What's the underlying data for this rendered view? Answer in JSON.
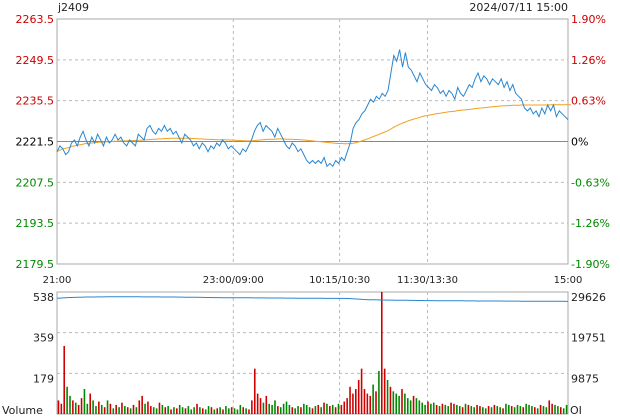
{
  "header": {
    "symbol": "j2409",
    "datetime": "2024/07/11 15:00"
  },
  "colors": {
    "up": "#cc0000",
    "down": "#008800",
    "flat": "#000000",
    "price_line": "#2a86d0",
    "avg_line": "#f0a020",
    "oi_line": "#2a86d0",
    "vol_up": "#cc0000",
    "vol_down": "#008800",
    "grid": "#bbbbbb",
    "axis": "#aaaaaa"
  },
  "chart_data": [
    {
      "type": "line",
      "name": "price",
      "y_ticks": [
        {
          "label": "2263.5",
          "value": 2263.5,
          "pct": "1.90%",
          "color": "up"
        },
        {
          "label": "2249.5",
          "value": 2249.5,
          "pct": "1.26%",
          "color": "up"
        },
        {
          "label": "2235.5",
          "value": 2235.5,
          "pct": "0.63%",
          "color": "up"
        },
        {
          "label": "2221.5",
          "value": 2221.5,
          "pct": "0%",
          "color": "flat"
        },
        {
          "label": "2207.5",
          "value": 2207.5,
          "pct": "-0.63%",
          "color": "down"
        },
        {
          "label": "2193.5",
          "value": 2193.5,
          "pct": "-1.26%",
          "color": "down"
        },
        {
          "label": "2179.5",
          "value": 2179.5,
          "pct": "-1.90%",
          "color": "down"
        }
      ],
      "ylim": [
        2179.5,
        2263.5
      ],
      "prev_close": 2221.5,
      "x_ticks": [
        {
          "label": "21:00",
          "pos": 0
        },
        {
          "label": "23:00/09:00",
          "pos": 0.345
        },
        {
          "label": "10:15/10:30",
          "pos": 0.553
        },
        {
          "label": "11:30/13:30",
          "pos": 0.725
        },
        {
          "label": "15:00",
          "pos": 1
        }
      ],
      "price": [
        2218,
        2220,
        2219,
        2217,
        2218,
        2221,
        2222,
        2220,
        2223,
        2225,
        2222,
        2220,
        2223,
        2221,
        2224,
        2222,
        2220,
        2223,
        2221,
        2222,
        2224,
        2222,
        2223,
        2221,
        2220,
        2222,
        2221,
        2220,
        2224,
        2223,
        2222,
        2226,
        2227,
        2225,
        2224,
        2226,
        2225,
        2227,
        2225,
        2226,
        2224,
        2225,
        2223,
        2221,
        2224,
        2223,
        2222,
        2220,
        2221,
        2219,
        2221,
        2220,
        2218,
        2220,
        2219,
        2221,
        2220,
        2222,
        2221,
        2219,
        2220,
        2219,
        2218,
        2217,
        2219,
        2218,
        2220,
        2222,
        2225,
        2227,
        2228,
        2225,
        2227,
        2226,
        2225,
        2223,
        2226,
        2224,
        2222,
        2220,
        2219,
        2221,
        2220,
        2218,
        2219,
        2217,
        2215,
        2214,
        2215,
        2214,
        2215,
        2214,
        2216,
        2213,
        2214,
        2213,
        2215,
        2214,
        2216,
        2215,
        2218,
        2221,
        2226,
        2228,
        2229,
        2231,
        2232,
        2234,
        2236,
        2235,
        2237,
        2236,
        2238,
        2237,
        2239,
        2245,
        2251,
        2249,
        2253,
        2247,
        2252,
        2247,
        2246,
        2244,
        2242,
        2245,
        2243,
        2241,
        2240,
        2239,
        2241,
        2240,
        2238,
        2239,
        2237,
        2239,
        2238,
        2236,
        2240,
        2238,
        2237,
        2239,
        2241,
        2240,
        2243,
        2245,
        2242,
        2244,
        2243,
        2241,
        2243,
        2242,
        2241,
        2243,
        2240,
        2242,
        2239,
        2241,
        2238,
        2237,
        2236,
        2233,
        2232,
        2233,
        2231,
        2232,
        2230,
        2233,
        2231,
        2234,
        2232,
        2234,
        2230,
        2232,
        2231,
        2230,
        2229
      ],
      "avg": [
        2218,
        2218.6,
        2219,
        2219.2,
        2219.4,
        2219.8,
        2220,
        2220.2,
        2220.4,
        2220.6,
        2220.8,
        2220.9,
        2221,
        2221.1,
        2221.2,
        2221.3,
        2221.3,
        2221.4,
        2221.4,
        2221.5,
        2221.6,
        2221.6,
        2221.7,
        2221.7,
        2221.7,
        2221.8,
        2221.8,
        2221.8,
        2221.9,
        2221.9,
        2222,
        2222.1,
        2222.2,
        2222.3,
        2222.3,
        2222.4,
        2222.4,
        2222.5,
        2222.5,
        2222.6,
        2222.6,
        2222.6,
        2222.6,
        2222.6,
        2222.6,
        2222.6,
        2222.6,
        2222.5,
        2222.5,
        2222.4,
        2222.4,
        2222.3,
        2222.3,
        2222.2,
        2222.2,
        2222.1,
        2222.1,
        2222.1,
        2222.1,
        2222,
        2222,
        2221.9,
        2221.9,
        2221.8,
        2221.8,
        2221.7,
        2221.7,
        2221.7,
        2221.8,
        2221.9,
        2222,
        2222.1,
        2222.2,
        2222.3,
        2222.3,
        2222.3,
        2222.4,
        2222.4,
        2222.4,
        2222.3,
        2222.3,
        2222.3,
        2222.2,
        2222.2,
        2222.1,
        2222,
        2221.9,
        2221.8,
        2221.7,
        2221.6,
        2221.5,
        2221.4,
        2221.3,
        2221.2,
        2221.1,
        2221,
        2220.9,
        2220.8,
        2220.8,
        2220.7,
        2220.7,
        2220.8,
        2220.9,
        2221.1,
        2221.4,
        2221.7,
        2222,
        2222.4,
        2222.8,
        2223.2,
        2223.6,
        2224,
        2224.4,
        2224.8,
        2225.2,
        2225.8,
        2226.4,
        2226.9,
        2227.4,
        2227.8,
        2228.2,
        2228.6,
        2228.9,
        2229.2,
        2229.5,
        2229.8,
        2230.1,
        2230.3,
        2230.5,
        2230.7,
        2230.9,
        2231.1,
        2231.2,
        2231.4,
        2231.5,
        2231.7,
        2231.8,
        2231.9,
        2232.1,
        2232.2,
        2232.3,
        2232.4,
        2232.5,
        2232.6,
        2232.8,
        2232.9,
        2233,
        2233.1,
        2233.2,
        2233.3,
        2233.4,
        2233.5,
        2233.6,
        2233.7,
        2233.7,
        2233.8,
        2233.8,
        2233.9,
        2233.9,
        2233.9,
        2234,
        2234,
        2234,
        2234,
        2234,
        2234,
        2234,
        2234,
        2234,
        2234,
        2234.1,
        2234.1,
        2234.1,
        2234.1,
        2234.1,
        2234.1,
        2234.1,
        2234.1
      ]
    },
    {
      "type": "bar",
      "name": "volume",
      "label_left": "Volume",
      "label_right": "OI",
      "vol_ticks": [
        "538",
        "359",
        "179"
      ],
      "vol_max": 538,
      "oi_ticks": [
        "29626",
        "19751",
        "9875"
      ],
      "oi_max": 29626,
      "oi": [
        28100,
        28150,
        28200,
        28250,
        28280,
        28300,
        28320,
        28340,
        28360,
        28380,
        28400,
        28400,
        28420,
        28420,
        28440,
        28440,
        28440,
        28450,
        28450,
        28450,
        28460,
        28460,
        28460,
        28460,
        28460,
        28460,
        28450,
        28450,
        28450,
        28440,
        28440,
        28440,
        28440,
        28430,
        28430,
        28430,
        28420,
        28420,
        28420,
        28410,
        28400,
        28400,
        28390,
        28380,
        28370,
        28360,
        28350,
        28340,
        28330,
        28320,
        28310,
        28300,
        28290,
        28280,
        28270,
        28260,
        28260,
        28250,
        28250,
        28240,
        28240,
        28230,
        28230,
        28220,
        28220,
        28210,
        28210,
        28200,
        28200,
        28200,
        28190,
        28190,
        28180,
        28180,
        28170,
        28170,
        28160,
        28160,
        28150,
        28150,
        28140,
        28140,
        28130,
        28130,
        28120,
        28120,
        28110,
        28110,
        28100,
        28100,
        28090,
        28090,
        28080,
        28080,
        28080,
        28070,
        28070,
        28060,
        28060,
        28050,
        28040,
        28000,
        27950,
        27900,
        27850,
        27800,
        27780,
        27760,
        27740,
        27720,
        27700,
        27690,
        27680,
        27670,
        27660,
        27650,
        27640,
        27630,
        27620,
        27610,
        27600,
        27590,
        27580,
        27570,
        27560,
        27550,
        27540,
        27540,
        27530,
        27530,
        27520,
        27520,
        27510,
        27510,
        27500,
        27500,
        27490,
        27490,
        27480,
        27480,
        27470,
        27470,
        27460,
        27460,
        27450,
        27450,
        27450,
        27440,
        27440,
        27440,
        27430,
        27430,
        27430,
        27420,
        27420,
        27420,
        27410,
        27410,
        27410,
        27400,
        27400,
        27400,
        27390,
        27390,
        27390,
        27380,
        27380,
        27380,
        27370,
        27370,
        27370,
        27360,
        27360,
        27360,
        27350,
        27350
      ],
      "volume": [
        60,
        45,
        300,
        120,
        80,
        60,
        50,
        40,
        70,
        110,
        45,
        90,
        60,
        35,
        55,
        40,
        30,
        60,
        45,
        25,
        40,
        30,
        50,
        35,
        30,
        25,
        40,
        30,
        60,
        80,
        45,
        55,
        35,
        30,
        25,
        50,
        40,
        30,
        35,
        20,
        30,
        25,
        40,
        30,
        25,
        35,
        20,
        30,
        45,
        30,
        25,
        20,
        35,
        30,
        20,
        25,
        30,
        20,
        35,
        25,
        30,
        25,
        20,
        40,
        30,
        25,
        20,
        60,
        200,
        90,
        70,
        50,
        80,
        45,
        40,
        60,
        35,
        30,
        45,
        55,
        40,
        30,
        25,
        35,
        30,
        45,
        40,
        30,
        25,
        35,
        40,
        30,
        50,
        45,
        35,
        40,
        30,
        45,
        40,
        55,
        70,
        120,
        90,
        110,
        150,
        200,
        110,
        90,
        80,
        130,
        100,
        190,
        540,
        200,
        150,
        120,
        100,
        90,
        80,
        110,
        90,
        70,
        60,
        80,
        70,
        60,
        50,
        40,
        55,
        45,
        50,
        40,
        35,
        45,
        40,
        35,
        50,
        45,
        40,
        35,
        30,
        45,
        40,
        35,
        30,
        40,
        35,
        30,
        25,
        35,
        30,
        40,
        35,
        30,
        25,
        45,
        40,
        35,
        30,
        40,
        35,
        30,
        45,
        40,
        35,
        30,
        25,
        40,
        35,
        30,
        60,
        45,
        40,
        35,
        30,
        25,
        40
      ],
      "volume_dir": [
        "u",
        "u",
        "u",
        "d",
        "d",
        "u",
        "d",
        "u",
        "u",
        "d",
        "d",
        "u",
        "d",
        "d",
        "u",
        "d",
        "u",
        "d",
        "u",
        "d",
        "u",
        "d",
        "u",
        "d",
        "u",
        "d",
        "u",
        "d",
        "u",
        "u",
        "d",
        "u",
        "u",
        "d",
        "d",
        "u",
        "d",
        "u",
        "d",
        "u",
        "d",
        "u",
        "d",
        "d",
        "u",
        "d",
        "d",
        "d",
        "u",
        "d",
        "u",
        "d",
        "d",
        "u",
        "d",
        "u",
        "d",
        "u",
        "d",
        "d",
        "u",
        "d",
        "d",
        "d",
        "u",
        "d",
        "u",
        "u",
        "u",
        "u",
        "u",
        "d",
        "u",
        "d",
        "d",
        "d",
        "u",
        "d",
        "d",
        "d",
        "d",
        "u",
        "d",
        "d",
        "u",
        "d",
        "d",
        "d",
        "u",
        "d",
        "u",
        "d",
        "u",
        "d",
        "u",
        "d",
        "u",
        "d",
        "u",
        "u",
        "u",
        "u",
        "u",
        "u",
        "u",
        "u",
        "u",
        "u",
        "u",
        "d",
        "u",
        "d",
        "u",
        "u",
        "d",
        "u",
        "d",
        "d",
        "d",
        "u",
        "d",
        "d",
        "d",
        "u",
        "d",
        "d",
        "d",
        "d",
        "u",
        "d",
        "d",
        "u",
        "d",
        "u",
        "d",
        "d",
        "u",
        "u",
        "d",
        "d",
        "u",
        "d",
        "u",
        "d",
        "d",
        "u",
        "u",
        "d",
        "d",
        "u",
        "d",
        "u",
        "d",
        "d",
        "u",
        "d",
        "d",
        "u",
        "d",
        "d",
        "d",
        "u",
        "d",
        "d",
        "d",
        "u",
        "d",
        "u",
        "d",
        "d",
        "u",
        "u",
        "d",
        "d",
        "u",
        "d",
        "d",
        "d",
        "u",
        "d"
      ]
    }
  ]
}
